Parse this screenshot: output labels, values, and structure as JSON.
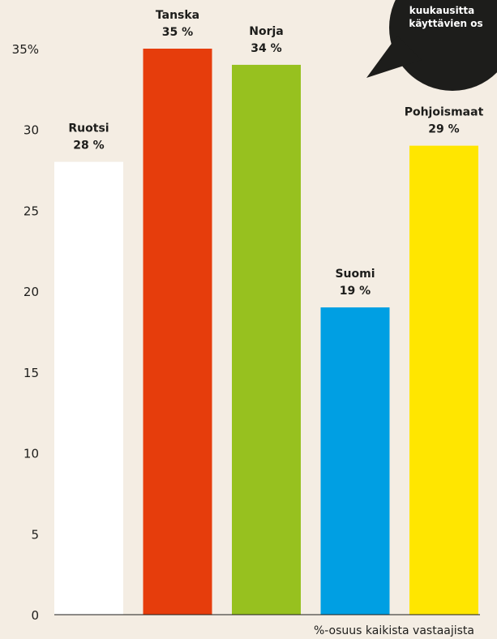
{
  "chart_data": {
    "type": "bar",
    "categories": [
      "Ruotsi",
      "Tanska",
      "Norja",
      "Suomi",
      "Pohjoismaat"
    ],
    "values": [
      28,
      35,
      34,
      19,
      29
    ],
    "value_labels": [
      "28 %",
      "35 %",
      "34 %",
      "19 %",
      "29 %"
    ],
    "colors": [
      "#ffffff",
      "#e63d0c",
      "#97c11f",
      "#009fe3",
      "#ffe600"
    ],
    "ylim": [
      0,
      35
    ],
    "yticks": [
      0,
      5,
      10,
      15,
      20,
      25,
      30,
      35
    ],
    "ytick_labels": [
      "0",
      "5",
      "10",
      "15",
      "20",
      "25",
      "30",
      "35%"
    ],
    "xlabel": "%-osuus kaikista vastaajista",
    "grid": false,
    "callout": {
      "lines": [
        "kuukausitta",
        "käyttävien os"
      ]
    }
  }
}
